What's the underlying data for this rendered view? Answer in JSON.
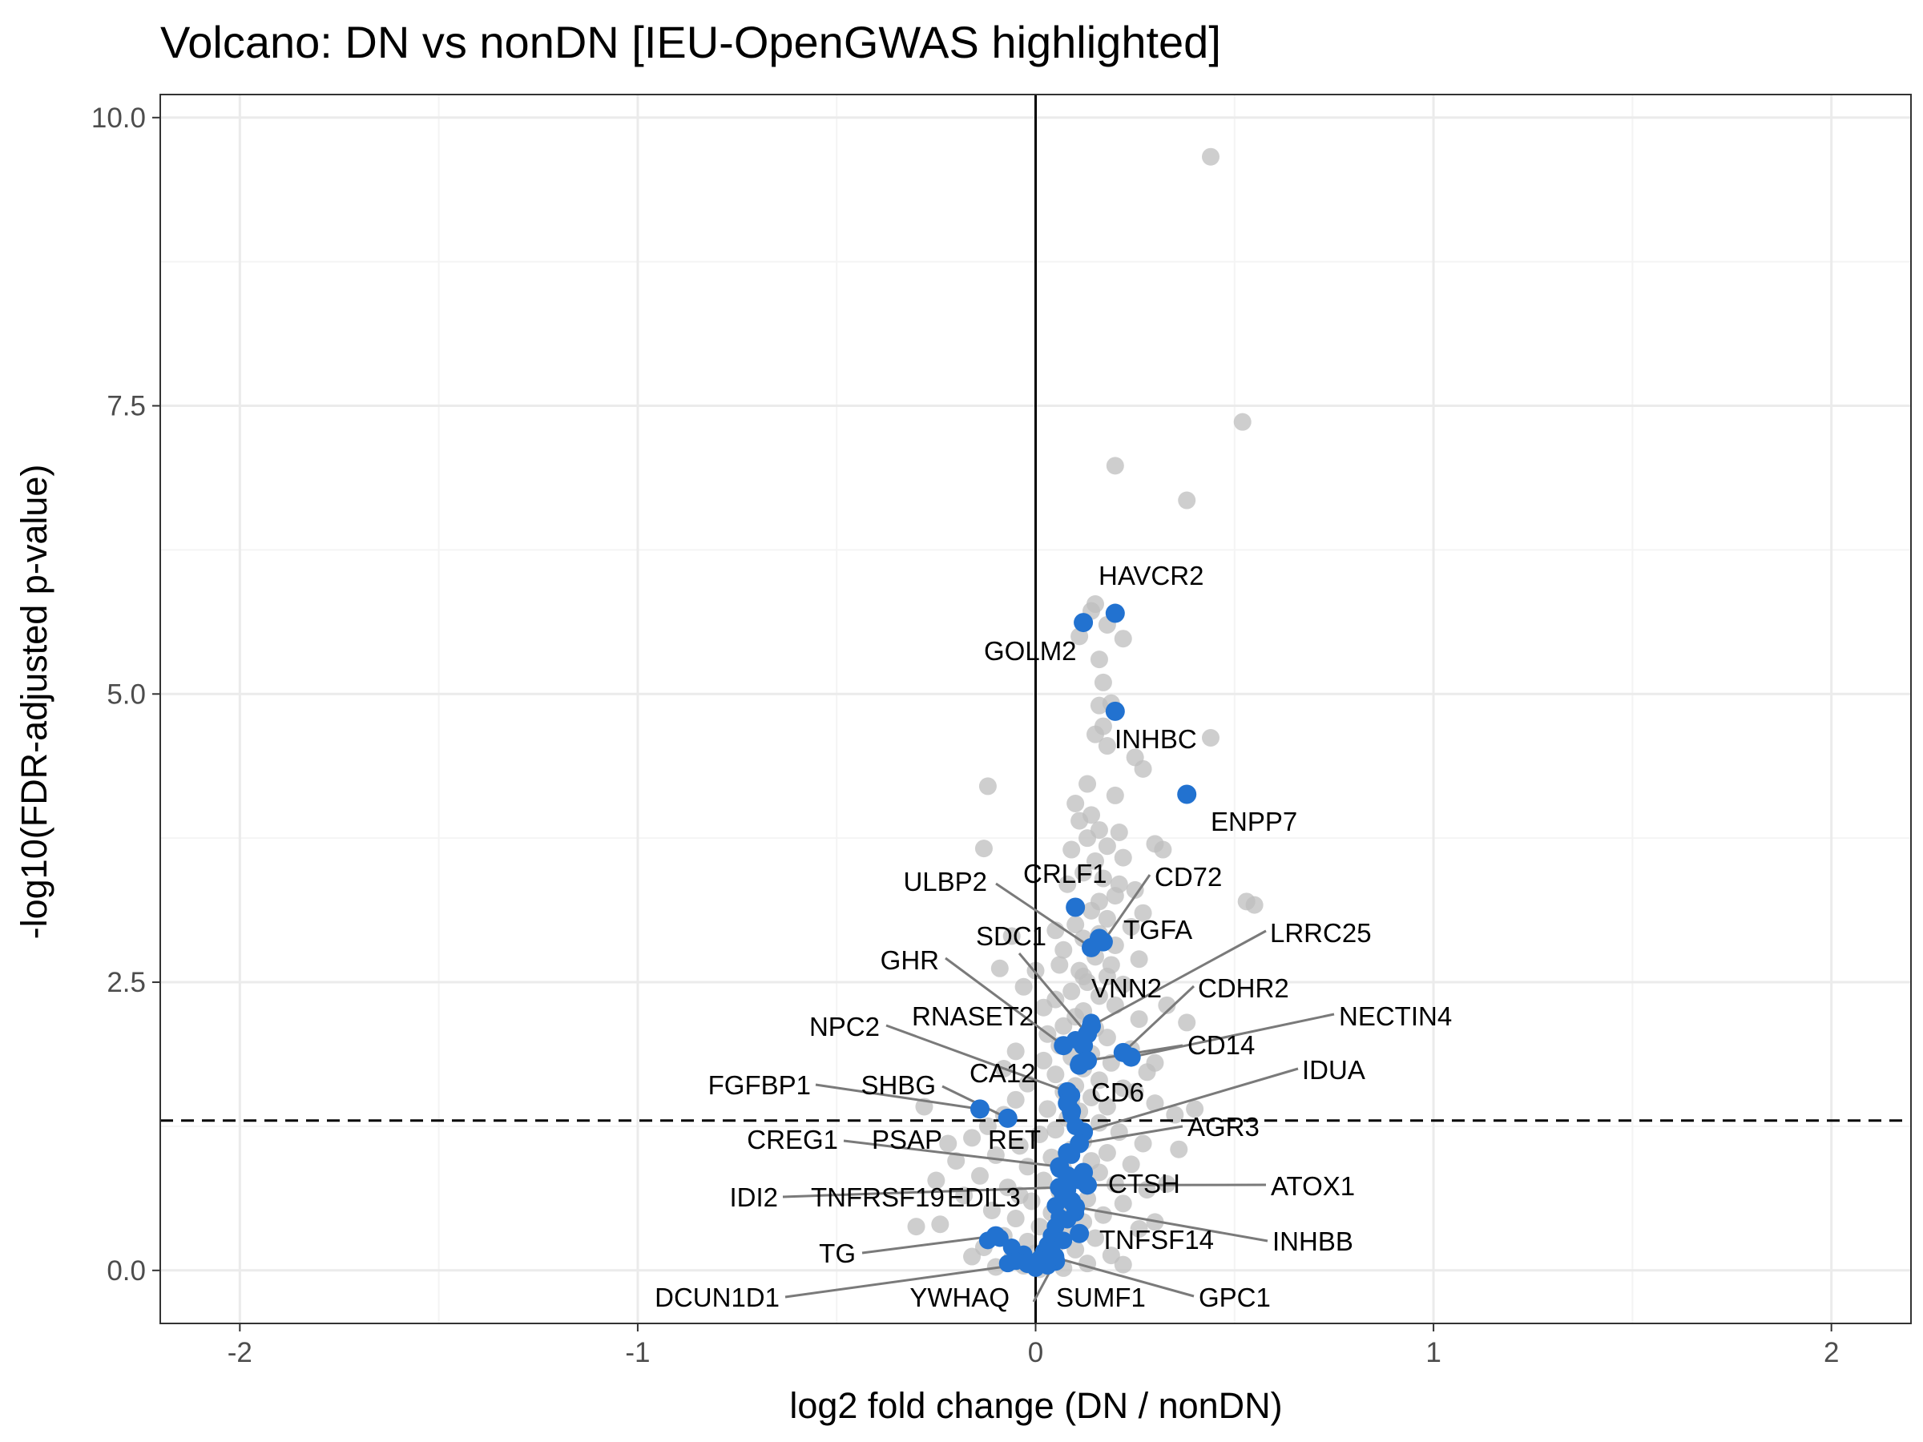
{
  "chart_data": {
    "type": "scatter",
    "title": "Volcano: DN vs nonDN [IEU-OpenGWAS highlighted]",
    "xlabel": "log2 fold change (DN / nonDN)",
    "ylabel": "-log10(FDR-adjusted p-value)",
    "xlim": [
      -2.2,
      2.2
    ],
    "ylim": [
      -0.46,
      10.2
    ],
    "x_ticks": [
      -2,
      -1,
      0,
      1,
      2
    ],
    "x_tick_labels": [
      "-2",
      "-1",
      "0",
      "1",
      "2"
    ],
    "y_ticks": [
      0,
      2.5,
      5,
      7.5,
      10
    ],
    "y_tick_labels": [
      "0.0",
      "2.5",
      "5.0",
      "7.5",
      "10.0"
    ],
    "grid": true,
    "vline_x": 0,
    "hline_y": 1.3,
    "colors": {
      "background_points": "#bdbdbd",
      "highlight_points": "#2272d0",
      "connector": "#7a7a7a",
      "grid_major": "#ebebeb",
      "grid_minor": "#f4f4f4",
      "panel_border": "#333333"
    },
    "background_points": [
      [
        0.44,
        9.66
      ],
      [
        0.52,
        7.36
      ],
      [
        0.2,
        6.98
      ],
      [
        0.38,
        6.68
      ],
      [
        0.15,
        5.78
      ],
      [
        0.14,
        5.72
      ],
      [
        0.18,
        5.6
      ],
      [
        0.22,
        5.48
      ],
      [
        0.16,
        5.3
      ],
      [
        0.11,
        5.5
      ],
      [
        0.17,
        5.1
      ],
      [
        0.19,
        4.92
      ],
      [
        0.16,
        4.9
      ],
      [
        0.17,
        4.72
      ],
      [
        0.15,
        4.65
      ],
      [
        0.25,
        4.45
      ],
      [
        0.44,
        4.62
      ],
      [
        0.27,
        4.35
      ],
      [
        0.18,
        4.55
      ],
      [
        0.13,
        4.22
      ],
      [
        0.2,
        4.12
      ],
      [
        0.1,
        4.05
      ],
      [
        -0.12,
        4.2
      ],
      [
        0.14,
        3.95
      ],
      [
        0.11,
        3.9
      ],
      [
        0.16,
        3.82
      ],
      [
        0.21,
        3.8
      ],
      [
        0.13,
        3.75
      ],
      [
        0.18,
        3.68
      ],
      [
        0.09,
        3.65
      ],
      [
        0.22,
        3.58
      ],
      [
        0.15,
        3.55
      ],
      [
        0.3,
        3.7
      ],
      [
        0.32,
        3.65
      ],
      [
        -0.13,
        3.66
      ],
      [
        0.12,
        3.45
      ],
      [
        0.17,
        3.4
      ],
      [
        0.25,
        3.3
      ],
      [
        0.08,
        3.35
      ],
      [
        0.2,
        3.25
      ],
      [
        0.53,
        3.2
      ],
      [
        0.55,
        3.17
      ],
      [
        0.14,
        3.12
      ],
      [
        0.18,
        3.05
      ],
      [
        0.1,
        3.0
      ],
      [
        0.24,
        2.98
      ],
      [
        0.16,
        2.92
      ],
      [
        -0.06,
        2.9
      ],
      [
        0.12,
        2.88
      ],
      [
        0.2,
        2.82
      ],
      [
        0.07,
        2.78
      ],
      [
        0.15,
        2.72
      ],
      [
        0.26,
        2.7
      ],
      [
        0.06,
        2.65
      ],
      [
        -0.09,
        2.62
      ],
      [
        0.11,
        2.6
      ],
      [
        0.18,
        2.55
      ],
      [
        0.13,
        2.5
      ],
      [
        0.22,
        2.48
      ],
      [
        0.09,
        2.42
      ],
      [
        0.16,
        2.38
      ],
      [
        0.05,
        2.35
      ],
      [
        0.2,
        2.3
      ],
      [
        0.12,
        2.25
      ],
      [
        0.1,
        2.2
      ],
      [
        0.26,
        2.18
      ],
      [
        0.38,
        2.15
      ],
      [
        0.07,
        2.12
      ],
      [
        0.15,
        2.1
      ],
      [
        0.03,
        2.05
      ],
      [
        0.18,
        2.02
      ],
      [
        0.11,
        2.0
      ],
      [
        0.06,
        1.95
      ],
      [
        0.24,
        1.92
      ],
      [
        0.14,
        1.88
      ],
      [
        0.09,
        1.85
      ],
      [
        0.02,
        1.82
      ],
      [
        0.19,
        1.8
      ],
      [
        0.12,
        1.75
      ],
      [
        0.28,
        1.72
      ],
      [
        0.05,
        1.7
      ],
      [
        0.16,
        1.65
      ],
      [
        -0.02,
        1.62
      ],
      [
        0.1,
        1.6
      ],
      [
        0.22,
        1.58
      ],
      [
        0.07,
        1.55
      ],
      [
        0.14,
        1.5
      ],
      [
        -0.05,
        1.48
      ],
      [
        0.3,
        1.45
      ],
      [
        0.18,
        1.42
      ],
      [
        0.03,
        1.4
      ],
      [
        0.11,
        1.38
      ],
      [
        0.35,
        1.35
      ],
      [
        -0.08,
        1.35
      ],
      [
        0.08,
        1.32
      ],
      [
        0.16,
        1.28
      ],
      [
        -0.12,
        1.25
      ],
      [
        0.05,
        1.22
      ],
      [
        0.21,
        1.2
      ],
      [
        0.01,
        1.18
      ],
      [
        -0.16,
        1.15
      ],
      [
        0.12,
        1.12
      ],
      [
        0.27,
        1.1
      ],
      [
        -0.04,
        1.08
      ],
      [
        0.09,
        1.05
      ],
      [
        0.18,
        1.02
      ],
      [
        -0.1,
        1.0
      ],
      [
        0.04,
        0.98
      ],
      [
        0.14,
        0.95
      ],
      [
        -0.2,
        0.95
      ],
      [
        0.24,
        0.92
      ],
      [
        -0.02,
        0.9
      ],
      [
        0.07,
        0.88
      ],
      [
        0.16,
        0.85
      ],
      [
        -0.14,
        0.82
      ],
      [
        0.11,
        0.8
      ],
      [
        0.02,
        0.78
      ],
      [
        0.2,
        0.75
      ],
      [
        -0.07,
        0.72
      ],
      [
        0.28,
        0.7
      ],
      [
        0.06,
        0.68
      ],
      [
        -0.18,
        0.65
      ],
      [
        0.13,
        0.62
      ],
      [
        -0.01,
        0.6
      ],
      [
        0.22,
        0.58
      ],
      [
        0.09,
        0.55
      ],
      [
        -0.11,
        0.52
      ],
      [
        0.04,
        0.5
      ],
      [
        0.17,
        0.48
      ],
      [
        -0.05,
        0.45
      ],
      [
        0.12,
        0.42
      ],
      [
        -0.24,
        0.4
      ],
      [
        0.01,
        0.38
      ],
      [
        0.26,
        0.36
      ],
      [
        0.08,
        0.33
      ],
      [
        -0.08,
        0.3
      ],
      [
        0.15,
        0.28
      ],
      [
        -0.02,
        0.25
      ],
      [
        0.05,
        0.22
      ],
      [
        -0.13,
        0.2
      ],
      [
        0.1,
        0.18
      ],
      [
        0.0,
        0.15
      ],
      [
        0.19,
        0.13
      ],
      [
        -0.06,
        0.1
      ],
      [
        0.03,
        0.08
      ],
      [
        0.13,
        0.06
      ],
      [
        -0.03,
        0.04
      ],
      [
        0.07,
        0.02
      ],
      [
        -0.1,
        0.03
      ],
      [
        0.22,
        0.05
      ],
      [
        0.01,
        0.01
      ],
      [
        -0.16,
        0.12
      ],
      [
        0.3,
        0.42
      ],
      [
        0.25,
        1.55
      ],
      [
        0.4,
        1.4
      ],
      [
        -0.28,
        1.42
      ],
      [
        -0.05,
        1.9
      ],
      [
        0.02,
        2.28
      ],
      [
        -0.03,
        2.46
      ],
      [
        -0.08,
        1.75
      ],
      [
        0.3,
        1.8
      ],
      [
        0.33,
        0.75
      ],
      [
        -0.25,
        0.78
      ],
      [
        -0.3,
        0.38
      ],
      [
        0.36,
        1.05
      ],
      [
        -0.22,
        1.1
      ],
      [
        0.0,
        2.6
      ],
      [
        0.05,
        2.95
      ],
      [
        0.27,
        3.1
      ],
      [
        0.21,
        3.35
      ],
      [
        0.33,
        2.3
      ],
      [
        -0.04,
        0.65
      ],
      [
        0.09,
        1.48
      ],
      [
        0.12,
        2.55
      ],
      [
        0.19,
        2.65
      ],
      [
        0.16,
        3.2
      ]
    ],
    "highlighted_genes": [
      {
        "gene": "HAVCR2",
        "x": 0.2,
        "y": 5.7
      },
      {
        "gene": "GOLM2",
        "x": 0.12,
        "y": 5.62
      },
      {
        "gene": "INHBC",
        "x": 0.2,
        "y": 4.85
      },
      {
        "gene": "ENPP7",
        "x": 0.38,
        "y": 4.13
      },
      {
        "gene": "CRLF1",
        "x": 0.1,
        "y": 3.15
      },
      {
        "gene": "CD72",
        "x": 0.17,
        "y": 2.85
      },
      {
        "gene": "ULBP2",
        "x": 0.14,
        "y": 2.8
      },
      {
        "gene": "TGFA",
        "x": 0.16,
        "y": 2.88
      },
      {
        "gene": "SDC1",
        "x": 0.13,
        "y": 2.05
      },
      {
        "gene": "LRRC25",
        "x": 0.14,
        "y": 2.12
      },
      {
        "gene": "VNN2",
        "x": 0.12,
        "y": 1.95
      },
      {
        "gene": "CDHR2",
        "x": 0.22,
        "y": 1.89
      },
      {
        "gene": "GHR",
        "x": 0.07,
        "y": 1.95
      },
      {
        "gene": "RNASET2",
        "x": 0.11,
        "y": 1.78
      },
      {
        "gene": "NECTIN4",
        "x": 0.24,
        "y": 1.85
      },
      {
        "gene": "NPC2",
        "x": 0.08,
        "y": 1.55
      },
      {
        "gene": "CD14",
        "x": 0.13,
        "y": 1.82
      },
      {
        "gene": "CA12",
        "x": 0.08,
        "y": 1.45
      },
      {
        "gene": "CD6",
        "x": 0.09,
        "y": 1.38
      },
      {
        "gene": "IDUA",
        "x": 0.12,
        "y": 1.2
      },
      {
        "gene": "FGFBP1",
        "x": -0.14,
        "y": 1.4
      },
      {
        "gene": "SHBG",
        "x": -0.07,
        "y": 1.32
      },
      {
        "gene": "AGR3",
        "x": 0.11,
        "y": 1.1
      },
      {
        "gene": "RET",
        "x": 0.08,
        "y": 1.02
      },
      {
        "gene": "CREG1",
        "x": 0.06,
        "y": 0.9
      },
      {
        "gene": "PSAP",
        "x": 0.08,
        "y": 0.82
      },
      {
        "gene": "CTSH",
        "x": 0.12,
        "y": 0.85
      },
      {
        "gene": "ATOX1",
        "x": 0.13,
        "y": 0.74
      },
      {
        "gene": "IDI2",
        "x": 0.06,
        "y": 0.72
      },
      {
        "gene": "TNFRSF19",
        "x": 0.07,
        "y": 0.66
      },
      {
        "gene": "EDIL3",
        "x": 0.09,
        "y": 0.6
      },
      {
        "gene": "INHBB",
        "x": 0.1,
        "y": 0.55
      },
      {
        "gene": "TNFSF14",
        "x": 0.11,
        "y": 0.32
      },
      {
        "gene": "TG",
        "x": -0.1,
        "y": 0.3
      },
      {
        "gene": "DCUN1D1",
        "x": -0.02,
        "y": 0.06
      },
      {
        "gene": "YWHAQ",
        "x": 0.0,
        "y": 0.04
      },
      {
        "gene": "SUMF1",
        "x": 0.05,
        "y": 0.08
      },
      {
        "gene": "GPC1",
        "x": 0.04,
        "y": 0.12
      }
    ],
    "extra_highlight_points": [
      [
        0.14,
        2.15
      ],
      [
        0.1,
        2.0
      ],
      [
        0.11,
        1.8
      ],
      [
        0.09,
        1.52
      ],
      [
        0.09,
        1.35
      ],
      [
        0.1,
        1.25
      ],
      [
        0.09,
        1.0
      ],
      [
        0.06,
        0.88
      ],
      [
        0.11,
        0.78
      ],
      [
        0.08,
        0.7
      ],
      [
        0.05,
        0.56
      ],
      [
        0.06,
        0.46
      ],
      [
        0.05,
        0.38
      ],
      [
        0.04,
        0.3
      ],
      [
        0.03,
        0.22
      ],
      [
        0.02,
        0.16
      ],
      [
        0.05,
        0.12
      ],
      [
        0.01,
        0.1
      ],
      [
        -0.03,
        0.14
      ],
      [
        -0.06,
        0.2
      ],
      [
        -0.09,
        0.28
      ],
      [
        -0.12,
        0.26
      ],
      [
        -0.05,
        0.08
      ],
      [
        0.03,
        0.04
      ],
      [
        0.0,
        0.02
      ],
      [
        -0.07,
        0.06
      ],
      [
        0.07,
        0.26
      ],
      [
        0.08,
        0.44
      ],
      [
        0.1,
        0.5
      ],
      [
        0.04,
        0.18
      ]
    ]
  }
}
